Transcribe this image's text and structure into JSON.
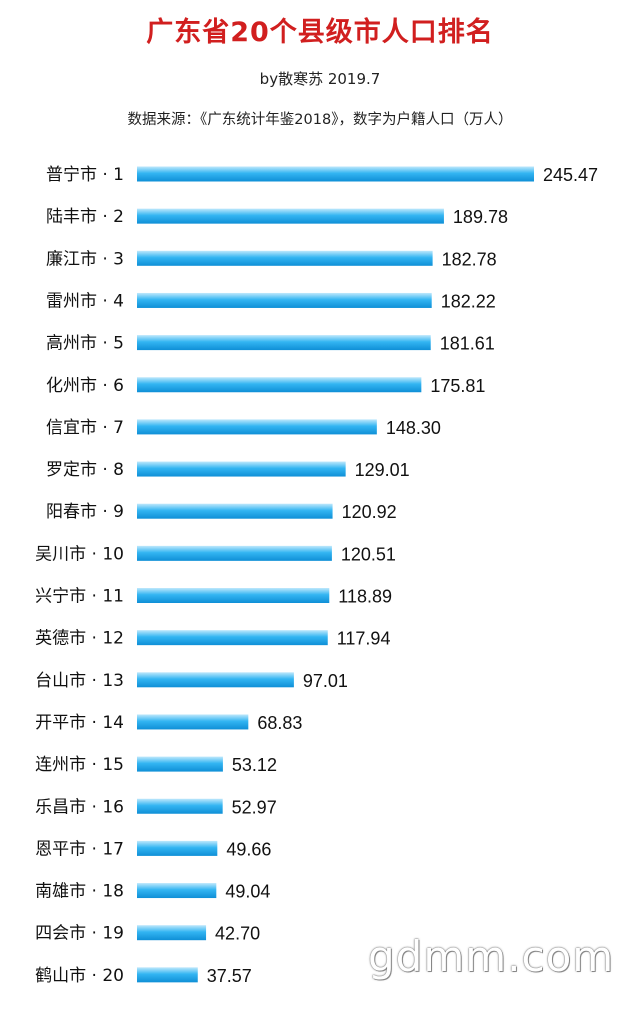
{
  "chart_data": {
    "type": "bar",
    "orientation": "horizontal",
    "title": "广东省20个县级市人口排名",
    "byline": "by散寒苏 2019.7",
    "source": "数据来源：《广东统计年鉴2018》，数字为户籍人口（万人）",
    "categories": [
      "普宁市 · 1",
      "陆丰市 · 2",
      "廉江市 · 3",
      "雷州市 · 4",
      "高州市 · 5",
      "化州市 · 6",
      "信宜市 · 7",
      "罗定市 · 8",
      "阳春市 · 9",
      "吴川市 · 10",
      "兴宁市 · 11",
      "英德市 · 12",
      "台山市 · 13",
      "开平市 · 14",
      "连州市 · 15",
      "乐昌市 · 16",
      "恩平市 · 17",
      "南雄市 · 18",
      "四会市 · 19",
      "鹤山市 · 20"
    ],
    "values": [
      245.47,
      189.78,
      182.78,
      182.22,
      181.61,
      175.81,
      148.3,
      129.01,
      120.92,
      120.51,
      118.89,
      117.94,
      97.01,
      68.83,
      53.12,
      52.97,
      49.66,
      49.04,
      42.7,
      37.57
    ],
    "value_labels": [
      "245.47",
      "189.78",
      "182.78",
      "182.22",
      "181.61",
      "175.81",
      "148.30",
      "129.01",
      "120.92",
      "120.51",
      "118.89",
      "117.94",
      "97.01",
      "68.83",
      "53.12",
      "52.97",
      "49.66",
      "49.04",
      "42.70",
      "37.57"
    ],
    "unit": "万人",
    "bar_color": "#33b5f2",
    "title_color": "#d11f1f"
  },
  "watermark": "gdmm.com"
}
